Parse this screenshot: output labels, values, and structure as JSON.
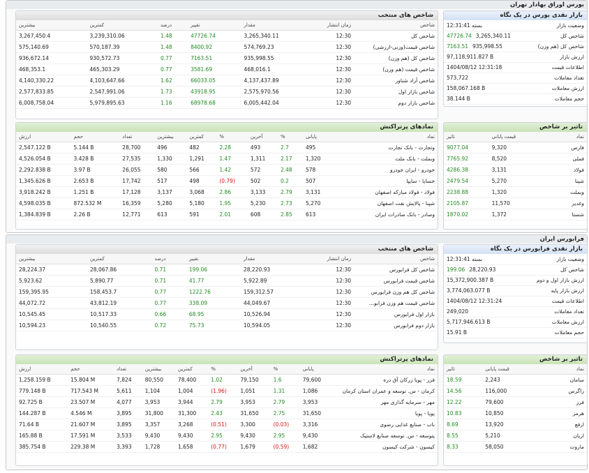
{
  "sections": [
    {
      "title": "بورس اوراق بهادار تهران",
      "overview": {
        "title": "بازار نقدی بورس در یک نگاه",
        "rows": [
          {
            "label": "وضعیت بازار",
            "value": "بسته 12:31:41"
          },
          {
            "label": "شاخص کل",
            "value": "3,265,340.11",
            "change": "47726.74"
          },
          {
            "label": "شاخص کل (هم وزن)",
            "value": "935,998.55",
            "change": "7163.51"
          },
          {
            "label": "ارزش بازار",
            "value": "97,118,911.827 B"
          },
          {
            "label": "اطلاعات قیمت",
            "value": "1404/08/12 12:31:18"
          },
          {
            "label": "تعداد معاملات",
            "value": "573,722"
          },
          {
            "label": "ارزش معاملات",
            "value": "158,067.168 B"
          },
          {
            "label": "حجم معاملات",
            "value": "38.144 B"
          }
        ]
      },
      "indices": {
        "title": "شاخص های منتخب",
        "headers": [
          "شاخص",
          "زمان انتشار",
          "مقدار",
          "تغییر",
          "درصد",
          "کمترین",
          "بیشترین"
        ],
        "rows": [
          [
            "شاخص کل",
            "12:30",
            "3,265,340.11",
            "47726.74",
            "1.48",
            "3,239,310.06",
            "3,267,450.4"
          ],
          [
            "شاخص قیمت(وزنی-ارزشی)",
            "12:30",
            "574,769.23",
            "8400.92",
            "1.48",
            "570,187.39",
            "575,140.69"
          ],
          [
            "شاخص کل (هم وزن)",
            "12:30",
            "935,998.55",
            "7163.51",
            "0.77",
            "930,572.73",
            "936,672.14"
          ],
          [
            "شاخص قیمت (هم وزن)",
            "12:30",
            "468,016.1",
            "3581.69",
            "0.77",
            "465,303.29",
            "468,353.1"
          ],
          [
            "شاخص آزاد شناور",
            "12:30",
            "4,137,437.89",
            "66033.05",
            "1.62",
            "4,103,647.66",
            "4,140,330.22"
          ],
          [
            "شاخص بازار اول",
            "12:30",
            "2,575,970.56",
            "43918.95",
            "1.73",
            "2,547,991.06",
            "2,577,833.85"
          ],
          [
            "شاخص بازار دوم",
            "12:30",
            "6,005,442.04",
            "68978.68",
            "1.16",
            "5,979,895.63",
            "6,008,758.04"
          ]
        ]
      },
      "impact": {
        "title": "تاثیر بر شاخص",
        "headers": [
          "نماد",
          "قیمت پایانی",
          "تاثیر"
        ],
        "rows": [
          [
            "فارس",
            "9,320",
            "9077.04"
          ],
          [
            "فملی",
            "8,520",
            "7765.92"
          ],
          [
            "فولاد",
            "3,131",
            "4286.38"
          ],
          [
            "شپنا",
            "5,270",
            "2479.54"
          ],
          [
            "وبملت",
            "1,320",
            "2238.88"
          ],
          [
            "وغدیر",
            "11,570",
            "2105.87"
          ],
          [
            "شستا",
            "1,372",
            "1870.02"
          ]
        ]
      },
      "traded": {
        "title": "نمادهای پرتراکنش",
        "headers": [
          "نماد",
          "پایانی",
          "%",
          "آخرین",
          "%",
          "کمترین",
          "بیشترین",
          "تعداد",
          "حجم",
          "ارزش"
        ],
        "rows": [
          [
            "وتجارت - بانک تجارت",
            "495",
            "2.7",
            "493",
            "2.28",
            "482",
            "496",
            "28,700",
            "5.144 B",
            "2,547.122 B"
          ],
          [
            "وبملت - بانک ملت",
            "1,320",
            "2.17",
            "1,311",
            "1.47",
            "1,291",
            "1,330",
            "27,535",
            "3.428 B",
            "4,526.054 B"
          ],
          [
            "خودرو - ایران خودرو",
            "578",
            "2.48",
            "572",
            "1.42",
            "566",
            "580",
            "26,055",
            "3.97 B",
            "2,292.838 B"
          ],
          [
            "خسایا - سایپا",
            "507",
            "0.2",
            "502",
            "(0.79)",
            "498",
            "517",
            "17,742",
            "2.653 B",
            "1,345.626 B"
          ],
          [
            "فولاد - فولاد مبارکه اصفهان",
            "3,131",
            "2.79",
            "3,133",
            "2.86",
            "3,068",
            "3,137",
            "17,128",
            "1.251 B",
            "3,918.242 B"
          ],
          [
            "شپنا - پالایش نفت اصفهان",
            "5,270",
            "2.73",
            "5,230",
            "1.95",
            "5,180",
            "5,280",
            "16,359",
            "872.532 M",
            "4,598.035 B"
          ],
          [
            "وصادر - بانک صادرات ایران",
            "613",
            "2.85",
            "608",
            "2.01",
            "591",
            "613",
            "12,771",
            "2.26 B",
            "1,384.839 B"
          ]
        ]
      }
    },
    {
      "title": "فرابورس ایران",
      "overview": {
        "title": "بازار نقدی فرابورس در یک نگاه",
        "rows": [
          {
            "label": "وضعیت بازار",
            "value": "بسته 12:31:41"
          },
          {
            "label": "شاخص کل",
            "value": "28,220.93",
            "change": "199.06"
          },
          {
            "label": "ارزش بازار اول و دوم",
            "value": "15,372,900.387 B"
          },
          {
            "label": "ارزش بازار پایه",
            "value": "3,774,063.077 B"
          },
          {
            "label": "اطلاعات قیمت",
            "value": "1404/08/12 12:31:24"
          },
          {
            "label": "تعداد معاملات",
            "value": "249,020"
          },
          {
            "label": "ارزش معاملات",
            "value": "5,717,946.613 B"
          },
          {
            "label": "حجم معاملات",
            "value": "15.91 B"
          }
        ]
      },
      "indices": {
        "title": "شاخص های منتخب",
        "headers": [
          "شاخص",
          "زمان انتشار",
          "مقدار",
          "تغییر",
          "درصد",
          "کمترین",
          "بیشترین"
        ],
        "rows": [
          [
            "شاخص کل فرابورس",
            "12:30",
            "28,220.93",
            "199.06",
            "0.71",
            "28,067.86",
            "28,224.37"
          ],
          [
            "شاخص قیمت فرابورس",
            "12:30",
            "5,922.89",
            "41.77",
            "0.71",
            "5,890.77",
            "5,923.62"
          ],
          [
            "شاخص کل هم وزن فرابورس",
            "12:30",
            "159,312.57",
            "1222.76",
            "0.77",
            "158,453.7",
            "159,395.95"
          ],
          [
            "شاخص قیمت هم وزن فرابو...",
            "12:30",
            "44,049.67",
            "338.09",
            "0.77",
            "43,812.19",
            "44,072.72"
          ],
          [
            "بازار اول فرابورس",
            "12:30",
            "10,526.94",
            "68.95",
            "0.66",
            "10,517.33",
            "10,545.45"
          ],
          [
            "بازار دوم فرابورس",
            "12:30",
            "10,594.05",
            "75.73",
            "0.72",
            "10,540.55",
            "10,594.23"
          ]
        ]
      },
      "impact": {
        "title": "تاثیر بر شاخص",
        "headers": [
          "نماد",
          "قیمت پایانی",
          "تاثیر"
        ],
        "rows": [
          [
            "سامان",
            "2,243",
            "18.59"
          ],
          [
            "زاگرس",
            "116,000",
            "14.56"
          ],
          [
            "فرز",
            "79,600",
            "12.22"
          ],
          [
            "هرمز",
            "10,850",
            "10.83"
          ],
          [
            "ارفع",
            "13,920",
            "8.69"
          ],
          [
            "اریان",
            "5,210",
            "8.55"
          ],
          [
            "ماروت",
            "58,050",
            "8.33"
          ]
        ]
      },
      "traded": {
        "title": "نمادهای پرتراکنش",
        "headers": [
          "نماد",
          "پایانی",
          "%",
          "آخرین",
          "%",
          "کمترین",
          "بیشترین",
          "تعداد",
          "حجم",
          "ارزش"
        ],
        "rows": [
          [
            "فرز - پویا زرکان آق دره",
            "79,600",
            "1.6",
            "79,150",
            "1.02",
            "78,400",
            "80,550",
            "7,824",
            "15.804 M",
            "1,258.159 B"
          ],
          [
            "کرمان - س. توسعه و عمران استان کرمان",
            "1,086",
            "1.31",
            "1,051",
            "(1.96)",
            "1,004",
            "1,104",
            "5,611",
            "717.543 M",
            "779.148 B"
          ],
          [
            "مهر - سرمایه گذاری مهر",
            "3,953",
            "2.79",
            "3,953",
            "2.79",
            "3,944",
            "3,953",
            "4,077",
            "23.507 M",
            "92.725 B"
          ],
          [
            "پویا - پویا",
            "31,650",
            "2.75",
            "31,650",
            "2.43",
            "31,300",
            "31,800",
            "3,895",
            "4.546 M",
            "144.287 B"
          ],
          [
            "ناب - صنایع غذایی رضوی",
            "3,316",
            "(0.03)",
            "3,300",
            "(0.51)",
            "3,268",
            "3,357",
            "3,895",
            "21.607 M",
            "71.64 B"
          ],
          [
            "پتوسعه - س. توسعه صنایع لاستیک",
            "9,430",
            "2.95",
            "9,430",
            "2.95",
            "9,430",
            "9,430",
            "3,533",
            "17.591 M",
            "165.88 B"
          ],
          [
            "کیسون - شرکت کیسون",
            "1,682",
            "(0.59)",
            "1,679",
            "(0.77)",
            "1,658",
            "1,728",
            "3,393",
            "229.38 M",
            "385.754 B"
          ]
        ]
      }
    }
  ]
}
